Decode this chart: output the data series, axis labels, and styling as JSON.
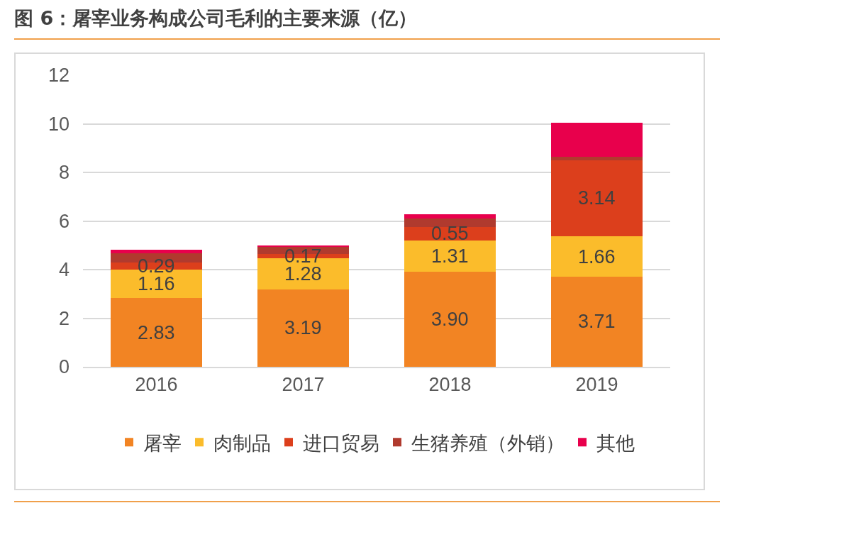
{
  "chart_data": {
    "type": "bar",
    "title": "图 6：屠宰业务构成公司毛利的主要来源（亿）",
    "categories": [
      "2016",
      "2017",
      "2018",
      "2019"
    ],
    "stacked": true,
    "series": [
      {
        "name": "屠宰",
        "color": "#f28423",
        "values": [
          2.83,
          3.19,
          3.9,
          3.71
        ],
        "value_labels": [
          "2.83",
          "3.19",
          "3.90",
          "3.71"
        ]
      },
      {
        "name": "肉制品",
        "color": "#fbbc2b",
        "values": [
          1.16,
          1.28,
          1.31,
          1.66
        ],
        "value_labels": [
          "1.16",
          "1.28",
          "1.31",
          "1.66"
        ]
      },
      {
        "name": "进口贸易",
        "color": "#dc3f1c",
        "values": [
          0.29,
          0.17,
          0.55,
          3.14
        ],
        "value_labels": [
          "0.29",
          "0.17",
          "0.55",
          "3.14"
        ]
      },
      {
        "name": "生猪养殖（外销）",
        "color": "#b03a2e",
        "values": [
          0.39,
          0.28,
          0.33,
          0.14
        ]
      },
      {
        "name": "其他",
        "color": "#e8004c",
        "values": [
          0.15,
          0.08,
          0.18,
          1.4
        ]
      }
    ],
    "ylim": [
      0,
      12
    ],
    "yticks": [
      0,
      2,
      4,
      6,
      8,
      10,
      12
    ],
    "grid": "y",
    "legend": "bottom"
  }
}
